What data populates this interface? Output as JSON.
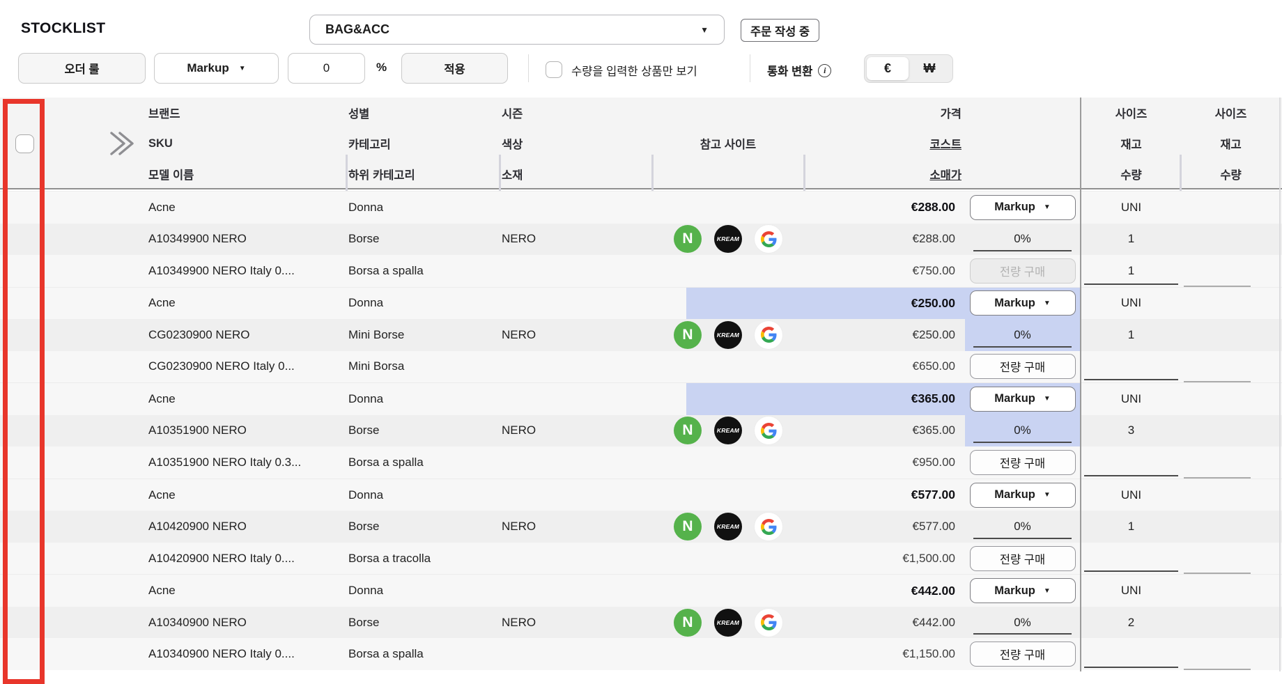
{
  "title": "STOCKLIST",
  "category_select": {
    "value": "BAG&ACC"
  },
  "status_button": "주문 작성 중",
  "toolbar": {
    "order_rule": "오더 룰",
    "markup_dropdown": "Markup",
    "markup_value": "0",
    "percent": "%",
    "apply": "적용",
    "filter_checkbox_label": "수량을 입력한 상품만 보기",
    "currency_label": "통화 변환",
    "currency_eur": "€",
    "currency_krw": "₩"
  },
  "icons": {
    "caret": "▼",
    "check": "✓",
    "info": "i",
    "naver": "N",
    "kream": "KREAM"
  },
  "table": {
    "headers": {
      "brand": [
        "브랜드",
        "SKU",
        "모델 이름"
      ],
      "gender": [
        "성별",
        "카테고리",
        "하위 카테고리"
      ],
      "season": [
        "시즌",
        "색상",
        "소재"
      ],
      "ref": "참고 사이트",
      "price": [
        "가격",
        "코스트",
        "소매가"
      ],
      "size1": [
        "사이즈",
        "재고",
        "수량"
      ],
      "size2": [
        "사이즈",
        "재고",
        "수량"
      ]
    },
    "markup_button": "Markup",
    "buy_all_button": "전량 구매",
    "rows": [
      {
        "checked": false,
        "highlighted": false,
        "buy_all_disabled": true,
        "brand": "Acne",
        "sku": "A10349900 NERO",
        "model": "A10349900 NERO Italy 0....",
        "gender": "Donna",
        "category": "Borse",
        "subcategory": "Borsa a spalla",
        "color": "NERO",
        "price": "€288.00",
        "cost": "€288.00",
        "retail": "€750.00",
        "markup_pct": "0%",
        "size": "UNI",
        "stock": "1",
        "qty": "1"
      },
      {
        "checked": true,
        "highlighted": true,
        "buy_all_disabled": false,
        "brand": "Acne",
        "sku": "CG0230900 NERO",
        "model": "CG0230900 NERO Italy 0...",
        "gender": "Donna",
        "category": "Mini Borse",
        "subcategory": "Mini Borsa",
        "color": "NERO",
        "price": "€250.00",
        "cost": "€250.00",
        "retail": "€650.00",
        "markup_pct": "0%",
        "size": "UNI",
        "stock": "1",
        "qty": ""
      },
      {
        "checked": true,
        "highlighted": true,
        "buy_all_disabled": false,
        "brand": "Acne",
        "sku": "A10351900 NERO",
        "model": "A10351900 NERO Italy 0.3...",
        "gender": "Donna",
        "category": "Borse",
        "subcategory": "Borsa a spalla",
        "color": "NERO",
        "price": "€365.00",
        "cost": "€365.00",
        "retail": "€950.00",
        "markup_pct": "0%",
        "size": "UNI",
        "stock": "3",
        "qty": ""
      },
      {
        "checked": false,
        "highlighted": false,
        "buy_all_disabled": false,
        "brand": "Acne",
        "sku": "A10420900 NERO",
        "model": "A10420900 NERO Italy 0....",
        "gender": "Donna",
        "category": "Borse",
        "subcategory": "Borsa a tracolla",
        "color": "NERO",
        "price": "€577.00",
        "cost": "€577.00",
        "retail": "€1,500.00",
        "markup_pct": "0%",
        "size": "UNI",
        "stock": "1",
        "qty": ""
      },
      {
        "checked": false,
        "highlighted": false,
        "buy_all_disabled": false,
        "brand": "Acne",
        "sku": "A10340900 NERO",
        "model": "A10340900 NERO Italy 0....",
        "gender": "Donna",
        "category": "Borse",
        "subcategory": "Borsa a spalla",
        "color": "NERO",
        "price": "€442.00",
        "cost": "€442.00",
        "retail": "€1,150.00",
        "markup_pct": "0%",
        "size": "UNI",
        "stock": "2",
        "qty": ""
      }
    ]
  },
  "colors": {
    "accent_red": "#e8362b",
    "highlight_blue": "#c9d3f2",
    "naver_green": "#55b24b"
  }
}
